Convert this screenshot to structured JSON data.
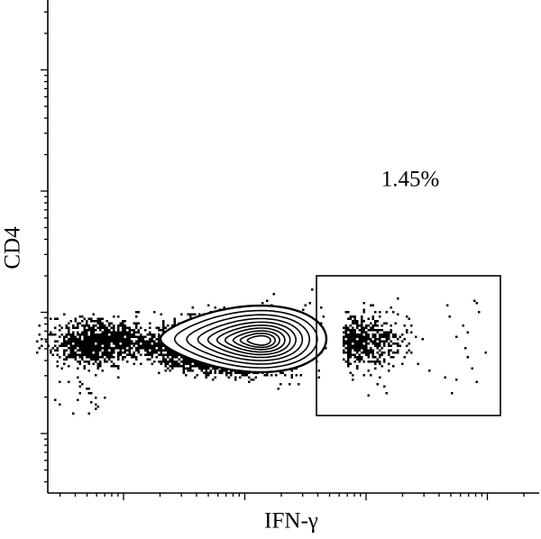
{
  "chart_data": {
    "type": "contour",
    "x_label": "IFN-γ",
    "y_label": "CD4",
    "annotation": "1.45%",
    "log_scale": true
  }
}
